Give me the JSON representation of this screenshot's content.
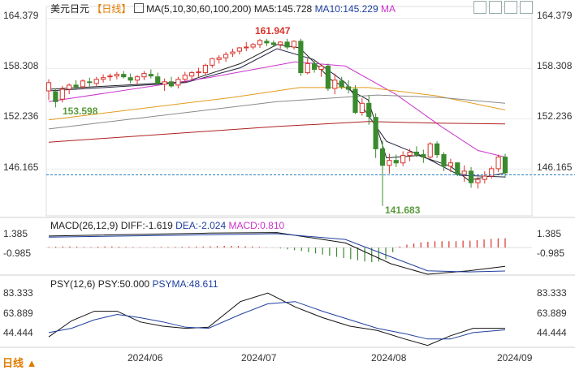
{
  "main_panel": {
    "symbol": "美元日元",
    "period": "【日线】",
    "ma_indicator": "MA(5,10,30,60,100,200)",
    "ma5_label": "MA5:145.728",
    "ma10_label": "MA10:145.229",
    "ma_trailing": "MA",
    "annotation_high": "161.947",
    "annotation_low": "141.683",
    "annotation_left": "153.598",
    "price_ticks": [
      "164.379",
      "158.308",
      "152.236",
      "146.165"
    ],
    "current_price": 145.45
  },
  "macd_panel": {
    "label": "MACD(26,12,9)",
    "diff": "DIFF:-1.619",
    "dea": "DEA:-2.024",
    "macd": "MACD:0.810",
    "ticks": [
      "1.385",
      "-0.985"
    ]
  },
  "psy_panel": {
    "label": "PSY(12,6)",
    "psy": "PSY:50.000",
    "psyma": "PSYMA:48.611",
    "ticks": [
      "83.333",
      "63.889",
      "44.444"
    ]
  },
  "x_axis": {
    "labels": [
      "2024/06",
      "2024/07",
      "2024/08",
      "2024/09"
    ]
  },
  "footer": {
    "period_selector": "日线 ▲"
  },
  "colors": {
    "up": "#d9332b",
    "down": "#3a8a2e",
    "ma5": "#222222",
    "ma10": "#222244",
    "ma30": "#cc33cc",
    "ma60": "#e39b1a",
    "ma100": "#8a8a8a",
    "ma200": "#b02020",
    "highlight": "#d9332b",
    "low_label": "#5a9a3a"
  },
  "chart_data": [
    {
      "type": "candlestick",
      "title": "美元日元 日线",
      "y_ticks": [
        164.379,
        158.308,
        152.236,
        146.165
      ],
      "ylim": [
        140.5,
        165.8
      ],
      "candles": [
        [
          155.6,
          157.0,
          154.5,
          156.6
        ],
        [
          155.5,
          155.9,
          153.6,
          154.3
        ],
        [
          154.6,
          156.2,
          154.2,
          155.8
        ],
        [
          155.8,
          156.5,
          155.2,
          156.3
        ],
        [
          156.3,
          156.9,
          155.7,
          156.1
        ],
        [
          156.1,
          157.0,
          155.8,
          156.8
        ],
        [
          156.7,
          157.2,
          156.1,
          156.6
        ],
        [
          156.5,
          157.3,
          156.2,
          157.0
        ],
        [
          157.0,
          157.6,
          156.6,
          157.2
        ],
        [
          157.3,
          157.7,
          156.8,
          157.4
        ],
        [
          157.4,
          157.9,
          157.0,
          157.6
        ],
        [
          157.6,
          158.0,
          157.1,
          157.3
        ],
        [
          157.2,
          157.7,
          156.5,
          156.9
        ],
        [
          156.9,
          157.5,
          156.4,
          157.3
        ],
        [
          157.3,
          158.0,
          156.9,
          157.7
        ],
        [
          157.6,
          158.2,
          157.1,
          157.4
        ],
        [
          157.3,
          157.8,
          156.3,
          156.5
        ],
        [
          156.4,
          157.1,
          155.6,
          156.7
        ],
        [
          156.7,
          157.3,
          156.0,
          156.2
        ],
        [
          156.3,
          157.3,
          155.9,
          157.0
        ],
        [
          157.0,
          157.9,
          156.6,
          157.5
        ],
        [
          157.4,
          158.0,
          156.9,
          157.8
        ],
        [
          157.9,
          158.4,
          157.3,
          157.9
        ],
        [
          157.8,
          158.9,
          157.5,
          158.7
        ],
        [
          158.7,
          159.6,
          158.4,
          159.5
        ],
        [
          159.4,
          159.9,
          158.9,
          159.6
        ],
        [
          159.6,
          160.3,
          159.1,
          160.0
        ],
        [
          160.1,
          160.7,
          159.7,
          160.3
        ],
        [
          160.4,
          160.9,
          160.0,
          160.8
        ],
        [
          160.8,
          161.5,
          160.4,
          160.9
        ],
        [
          160.9,
          161.4,
          160.6,
          161.2
        ],
        [
          161.2,
          161.9,
          160.8,
          161.7
        ],
        [
          161.6,
          161.9,
          161.0,
          161.4
        ],
        [
          161.4,
          161.7,
          160.9,
          161.2
        ],
        [
          161.2,
          161.6,
          160.7,
          161.5
        ],
        [
          161.5,
          161.9,
          160.6,
          160.9
        ],
        [
          160.9,
          161.7,
          160.6,
          161.6
        ],
        [
          161.6,
          161.9,
          157.4,
          157.8
        ],
        [
          157.8,
          159.5,
          157.6,
          158.9
        ],
        [
          158.9,
          159.2,
          157.8,
          158.2
        ],
        [
          158.2,
          158.8,
          157.3,
          158.6
        ],
        [
          158.6,
          158.9,
          155.6,
          155.9
        ],
        [
          155.9,
          157.7,
          155.2,
          156.9
        ],
        [
          156.8,
          157.3,
          155.8,
          156.1
        ],
        [
          156.1,
          156.9,
          155.3,
          155.8
        ],
        [
          155.8,
          156.3,
          152.8,
          153.0
        ],
        [
          153.0,
          154.7,
          152.6,
          154.1
        ],
        [
          154.1,
          155.1,
          151.5,
          152.5
        ],
        [
          152.4,
          152.9,
          147.5,
          148.6
        ],
        [
          148.6,
          149.6,
          141.7,
          146.6
        ],
        [
          146.6,
          148.0,
          145.6,
          147.2
        ],
        [
          147.2,
          147.9,
          146.4,
          146.9
        ],
        [
          146.9,
          148.3,
          146.5,
          147.8
        ],
        [
          147.8,
          148.6,
          147.1,
          148.2
        ],
        [
          148.2,
          148.9,
          147.6,
          147.9
        ],
        [
          147.9,
          148.5,
          146.9,
          147.6
        ],
        [
          147.6,
          149.4,
          147.4,
          149.2
        ],
        [
          149.2,
          149.5,
          147.5,
          147.9
        ],
        [
          147.9,
          148.2,
          145.9,
          146.5
        ],
        [
          146.5,
          147.4,
          145.8,
          146.9
        ],
        [
          146.9,
          147.0,
          145.3,
          145.5
        ],
        [
          145.5,
          146.6,
          144.6,
          145.9
        ],
        [
          145.9,
          146.4,
          143.9,
          144.5
        ],
        [
          144.5,
          145.2,
          143.8,
          144.9
        ],
        [
          144.9,
          145.9,
          144.4,
          145.3
        ],
        [
          145.3,
          146.5,
          145.0,
          146.2
        ],
        [
          146.2,
          147.9,
          145.8,
          147.6
        ],
        [
          147.6,
          148.0,
          145.1,
          145.7
        ]
      ],
      "ma_series": [
        {
          "name": "MA5",
          "values": [
            [
              0,
              155.8
            ],
            [
              0.3,
              156.7
            ],
            [
              0.42,
              158.9
            ],
            [
              0.5,
              161.2
            ],
            [
              0.55,
              160.8
            ],
            [
              0.62,
              156.9
            ],
            [
              0.7,
              154.5
            ],
            [
              0.74,
              147.5
            ],
            [
              0.81,
              147.8
            ],
            [
              0.88,
              146.5
            ],
            [
              0.92,
              144.8
            ],
            [
              1.0,
              145.7
            ]
          ]
        },
        {
          "name": "MA10",
          "values": [
            [
              0,
              155.6
            ],
            [
              0.3,
              156.6
            ],
            [
              0.42,
              158.4
            ],
            [
              0.5,
              160.7
            ],
            [
              0.58,
              159.4
            ],
            [
              0.65,
              156.6
            ],
            [
              0.74,
              149.5
            ],
            [
              0.82,
              147.7
            ],
            [
              0.9,
              145.4
            ],
            [
              1.0,
              145.2
            ]
          ]
        },
        {
          "name": "MA30",
          "values": [
            [
              0,
              154.3
            ],
            [
              0.35,
              157.2
            ],
            [
              0.54,
              159.1
            ],
            [
              0.65,
              158.6
            ],
            [
              0.76,
              155.2
            ],
            [
              0.86,
              151.3
            ],
            [
              0.94,
              148.4
            ],
            [
              1.0,
              147.6
            ]
          ]
        },
        {
          "name": "MA60",
          "values": [
            [
              0,
              152.1
            ],
            [
              0.4,
              154.8
            ],
            [
              0.55,
              156.0
            ],
            [
              0.7,
              156.0
            ],
            [
              0.85,
              155.0
            ],
            [
              1.0,
              153.3
            ]
          ]
        },
        {
          "name": "MA100",
          "values": [
            [
              0,
              151.0
            ],
            [
              0.5,
              154.3
            ],
            [
              0.72,
              155.1
            ],
            [
              0.86,
              154.8
            ],
            [
              1.0,
              154.1
            ]
          ]
        },
        {
          "name": "MA200",
          "values": [
            [
              0,
              149.4
            ],
            [
              0.5,
              151.3
            ],
            [
              0.7,
              151.9
            ],
            [
              0.85,
              151.7
            ],
            [
              1.0,
              151.6
            ]
          ]
        }
      ]
    },
    {
      "type": "bar",
      "title": "MACD(26,12,9)",
      "y_ticks": [
        1.385,
        -0.985
      ],
      "ylim": [
        -2.3,
        1.9
      ],
      "macd_hist": [
        0.05,
        0.08,
        0.1,
        0.1,
        0.08,
        0.06,
        0.05,
        0.08,
        0.1,
        0.1,
        0.08,
        0.06,
        0.05,
        0.04,
        0.03,
        0.05,
        0.06,
        0.06,
        0.06,
        0.07,
        0.08,
        0.09,
        0.1,
        0.12,
        0.14,
        0.15,
        0.15,
        0.14,
        0.12,
        0.1,
        0.07,
        0.03,
        -0.02,
        -0.08,
        -0.15,
        -0.22,
        -0.3,
        -0.4,
        -0.5,
        -0.6,
        -0.7,
        -0.8,
        -0.9,
        -1.0,
        -1.1,
        -1.2,
        -1.25,
        -1.2,
        -1.0,
        -0.4,
        0.1,
        0.25,
        0.35,
        0.45,
        0.5,
        0.55,
        0.55,
        0.55,
        0.55,
        0.6,
        0.6,
        0.65,
        0.7,
        0.75,
        0.8,
        0.81
      ],
      "diff": [
        [
          0,
          1.0
        ],
        [
          0.35,
          1.25
        ],
        [
          0.5,
          1.3
        ],
        [
          0.65,
          0.4
        ],
        [
          0.75,
          -1.4
        ],
        [
          0.83,
          -2.3
        ],
        [
          0.92,
          -2.0
        ],
        [
          1.0,
          -1.62
        ]
      ],
      "dea": [
        [
          0,
          0.9
        ],
        [
          0.35,
          1.1
        ],
        [
          0.5,
          1.2
        ],
        [
          0.65,
          0.7
        ],
        [
          0.75,
          -0.8
        ],
        [
          0.83,
          -2.0
        ],
        [
          0.92,
          -2.1
        ],
        [
          1.0,
          -2.02
        ]
      ]
    },
    {
      "type": "line",
      "title": "PSY(12,6)",
      "y_ticks": [
        83.333,
        63.889,
        44.444
      ],
      "ylim": [
        33,
        90
      ],
      "series": [
        {
          "name": "PSY",
          "values": [
            [
              0,
              42
            ],
            [
              0.05,
              57
            ],
            [
              0.1,
              66
            ],
            [
              0.15,
              66
            ],
            [
              0.2,
              56
            ],
            [
              0.25,
              52
            ],
            [
              0.3,
              50
            ],
            [
              0.35,
              51
            ],
            [
              0.42,
              75
            ],
            [
              0.48,
              83
            ],
            [
              0.54,
              70
            ],
            [
              0.6,
              60
            ],
            [
              0.66,
              52
            ],
            [
              0.72,
              48
            ],
            [
              0.78,
              40
            ],
            [
              0.83,
              34
            ],
            [
              0.88,
              43
            ],
            [
              0.93,
              50
            ],
            [
              1.0,
              50
            ]
          ]
        },
        {
          "name": "PSYMA",
          "values": [
            [
              0,
              46
            ],
            [
              0.05,
              50
            ],
            [
              0.1,
              58
            ],
            [
              0.15,
              63
            ],
            [
              0.2,
              60
            ],
            [
              0.25,
              56
            ],
            [
              0.3,
              51
            ],
            [
              0.35,
              50
            ],
            [
              0.42,
              63
            ],
            [
              0.48,
              73
            ],
            [
              0.54,
              75
            ],
            [
              0.6,
              66
            ],
            [
              0.66,
              58
            ],
            [
              0.72,
              50
            ],
            [
              0.78,
              45
            ],
            [
              0.83,
              40
            ],
            [
              0.88,
              40
            ],
            [
              0.93,
              46
            ],
            [
              1.0,
              48.6
            ]
          ]
        }
      ]
    }
  ]
}
